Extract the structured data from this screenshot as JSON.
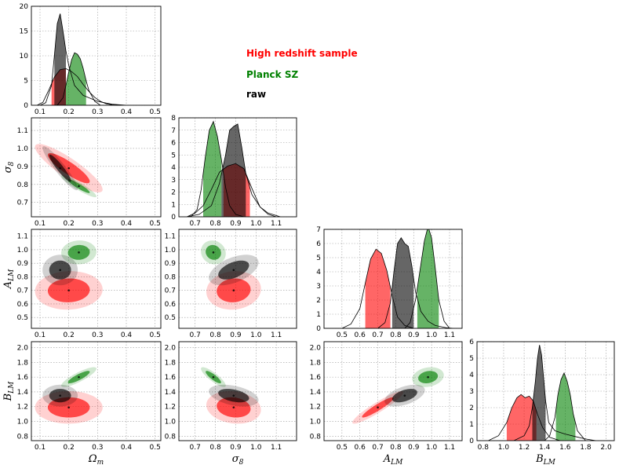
{
  "chart_data": {
    "type": "corner",
    "parameters": [
      {
        "key": "om",
        "symbol": "Ω",
        "sub": "m",
        "range": [
          0.07,
          0.52
        ],
        "ticks": [
          0.1,
          0.2,
          0.3,
          0.4,
          0.5
        ]
      },
      {
        "key": "s8",
        "symbol": "σ",
        "sub": "8",
        "range": [
          0.62,
          1.2
        ],
        "ticks": [
          0.7,
          0.8,
          0.9,
          1.0,
          1.1
        ]
      },
      {
        "key": "alm",
        "symbol": "A",
        "sub": "LM",
        "range": [
          0.4,
          1.17
        ],
        "ticks": [
          0.5,
          0.6,
          0.7,
          0.8,
          0.9,
          1.0,
          1.1
        ]
      },
      {
        "key": "blm",
        "symbol": "B",
        "sub": "LM",
        "range": [
          0.74,
          2.08
        ],
        "ticks": [
          0.8,
          1.0,
          1.2,
          1.4,
          1.6,
          1.8,
          2.0
        ]
      }
    ],
    "series": [
      {
        "name": "High redshift sample",
        "color": "#ff0000",
        "center": {
          "om": 0.2,
          "s8": 0.89,
          "alm": 0.7,
          "blm": 1.19
        },
        "sd": {
          "om": 0.048,
          "s8": 0.055,
          "alm": 0.058,
          "blm": 0.09
        },
        "corr": {
          "om|s8": -0.88,
          "om|alm": 0.05,
          "s8|alm": 0.08,
          "om|blm": 0.0,
          "s8|blm": -0.15,
          "alm|blm": 0.93
        },
        "hist": {
          "om": {
            "x": [
              0.09,
              0.11,
              0.13,
              0.15,
              0.17,
              0.19,
              0.21,
              0.23,
              0.25,
              0.27,
              0.29,
              0.31,
              0.33,
              0.35,
              0.37
            ],
            "y": [
              0,
              0.6,
              3,
              5.7,
              7.2,
              7.4,
              6.8,
              5.8,
              4.2,
              2.8,
              1.6,
              0.8,
              0.3,
              0.1,
              0
            ],
            "shade": [
              0.14,
              0.19
            ]
          },
          "s8": {
            "x": [
              0.66,
              0.7,
              0.74,
              0.78,
              0.82,
              0.86,
              0.9,
              0.94,
              0.98,
              1.02,
              1.06,
              1.1
            ],
            "y": [
              0,
              0.3,
              0.9,
              2.2,
              3.6,
              4.1,
              4.3,
              3.9,
              2.3,
              0.8,
              0.2,
              0
            ],
            "shade": [
              0.84,
              0.97
            ]
          },
          "alm": {
            "x": [
              0.5,
              0.55,
              0.6,
              0.63,
              0.66,
              0.69,
              0.72,
              0.75,
              0.78,
              0.81,
              0.85,
              0.9
            ],
            "y": [
              0,
              0.3,
              1.4,
              3.2,
              4.9,
              5.6,
              5.3,
              4.1,
              2.3,
              0.8,
              0.2,
              0
            ],
            "shade": [
              0.63,
              0.77
            ]
          },
          "blm": {
            "x": [
              0.85,
              0.95,
              1.03,
              1.08,
              1.13,
              1.17,
              1.21,
              1.25,
              1.29,
              1.33,
              1.38,
              1.45,
              1.55
            ],
            "y": [
              0,
              0.3,
              1.1,
              2.0,
              2.6,
              2.8,
              2.6,
              2.7,
              2.4,
              1.6,
              0.8,
              0.2,
              0
            ],
            "shade": [
              1.03,
              1.32
            ]
          }
        }
      },
      {
        "name": "Planck SZ",
        "color": "#008000",
        "center": {
          "om": 0.235,
          "s8": 0.79,
          "alm": 0.98,
          "blm": 1.6
        },
        "sd": {
          "om": 0.025,
          "s8": 0.025,
          "alm": 0.036,
          "blm": 0.055
        },
        "corr": {
          "om|s8": -0.92,
          "om|alm": 0.05,
          "s8|alm": -0.1,
          "om|blm": 0.85,
          "s8|blm": -0.85,
          "alm|blm": 0.2
        },
        "hist": {
          "om": {
            "x": [
              0.16,
              0.18,
              0.19,
              0.2,
              0.21,
              0.22,
              0.23,
              0.24,
              0.25,
              0.26,
              0.27,
              0.29,
              0.31
            ],
            "y": [
              0,
              1.5,
              4,
              6.8,
              9.2,
              10.6,
              10.3,
              9.4,
              7.5,
              5,
              3,
              0.8,
              0
            ],
            "shade": [
              0.19,
              0.26
            ]
          },
          "s8": {
            "x": [
              0.68,
              0.71,
              0.73,
              0.75,
              0.77,
              0.79,
              0.81,
              0.83,
              0.85,
              0.87,
              0.9,
              0.94
            ],
            "y": [
              0,
              0.6,
              2.2,
              4.8,
              7.0,
              7.7,
              6.5,
              4.6,
              2.4,
              0.9,
              0.2,
              0
            ],
            "shade": [
              0.74,
              0.83
            ]
          },
          "alm": {
            "x": [
              0.85,
              0.88,
              0.91,
              0.94,
              0.96,
              0.98,
              1.0,
              1.02,
              1.04,
              1.07,
              1.1
            ],
            "y": [
              0,
              0.4,
              2.0,
              4.5,
              6.2,
              7.2,
              6.4,
              4.3,
              2.0,
              0.5,
              0
            ],
            "shade": [
              0.92,
              1.04
            ]
          },
          "blm": {
            "x": [
              1.4,
              1.45,
              1.5,
              1.53,
              1.56,
              1.59,
              1.62,
              1.65,
              1.68,
              1.72,
              1.8
            ],
            "y": [
              0,
              0.3,
              1.4,
              2.8,
              3.7,
              4.1,
              3.6,
              2.8,
              1.6,
              0.6,
              0
            ],
            "shade": [
              1.51,
              1.7
            ]
          }
        }
      },
      {
        "name": "raw",
        "color": "#000000",
        "center": {
          "om": 0.17,
          "s8": 0.89,
          "alm": 0.85,
          "blm": 1.35
        },
        "sd": {
          "om": 0.025,
          "s8": 0.05,
          "alm": 0.046,
          "blm": 0.06
        },
        "corr": {
          "om|s8": -0.93,
          "om|alm": 0.0,
          "s8|alm": 0.5,
          "om|blm": 0.0,
          "s8|blm": -0.4,
          "alm|blm": 0.5
        },
        "hist": {
          "om": {
            "x": [
              0.1,
              0.12,
              0.14,
              0.15,
              0.16,
              0.17,
              0.18,
              0.19,
              0.2,
              0.22,
              0.25,
              0.3,
              0.35,
              0.4
            ],
            "y": [
              0,
              0.5,
              4,
              10,
              16.5,
              18.5,
              15,
              11,
              8,
              4,
              2,
              0.8,
              0.2,
              0
            ],
            "shade": [
              0.15,
              0.19
            ]
          },
          "s8": {
            "x": [
              0.66,
              0.72,
              0.78,
              0.82,
              0.85,
              0.87,
              0.89,
              0.91,
              0.93,
              0.95,
              0.98,
              1.02,
              1.06,
              1.12
            ],
            "y": [
              0,
              0.2,
              0.9,
              2.7,
              5.0,
              7.0,
              7.3,
              7.5,
              5.6,
              3.5,
              1.8,
              0.8,
              0.3,
              0
            ],
            "shade": [
              0.83,
              0.95
            ]
          },
          "alm": {
            "x": [
              0.7,
              0.74,
              0.77,
              0.79,
              0.81,
              0.83,
              0.85,
              0.87,
              0.89,
              0.91,
              0.94,
              0.98,
              1.02,
              1.08,
              1.12
            ],
            "y": [
              0,
              0.4,
              1.8,
              4.0,
              6.0,
              6.4,
              6.0,
              5.8,
              4.4,
              2.6,
              1.2,
              0.5,
              0.2,
              0.05,
              0
            ],
            "shade": [
              0.78,
              0.9
            ]
          },
          "blm": {
            "x": [
              1.1,
              1.2,
              1.25,
              1.28,
              1.31,
              1.33,
              1.35,
              1.37,
              1.39,
              1.41,
              1.44,
              1.5,
              1.6,
              1.7,
              1.8,
              1.9
            ],
            "y": [
              0,
              0.3,
              0.9,
              2.0,
              3.6,
              5.0,
              5.8,
              5.2,
              3.8,
              2.4,
              1.1,
              0.6,
              0.4,
              0.25,
              0.1,
              0
            ],
            "shade": [
              1.28,
              1.41
            ]
          }
        }
      }
    ],
    "diag_ylim": {
      "om": [
        0,
        20
      ],
      "s8": [
        0,
        8
      ],
      "alm": [
        0,
        7
      ],
      "blm": [
        0,
        6
      ]
    },
    "diag_yticks": {
      "om": [
        0,
        5,
        10,
        15,
        20
      ],
      "s8": [
        0,
        1,
        2,
        3,
        4,
        5,
        6,
        7,
        8
      ],
      "alm": [
        0,
        1,
        2,
        3,
        4,
        5,
        6,
        7
      ],
      "blm": [
        0,
        1,
        2,
        3,
        4,
        5,
        6
      ]
    },
    "offdiag_ylim": {
      "s8": [
        0.62,
        1.17
      ],
      "alm": [
        0.42,
        1.15
      ],
      "blm": [
        0.74,
        2.08
      ]
    },
    "offdiag_yticks": {
      "s8": [
        0.7,
        0.8,
        0.9,
        1.0,
        1.1
      ],
      "alm": [
        0.5,
        0.6,
        0.7,
        0.8,
        0.9,
        1.0,
        1.1
      ],
      "blm": [
        0.8,
        1.0,
        1.2,
        1.4,
        1.6,
        1.8,
        2.0
      ]
    },
    "legend_position": "top-right",
    "grid": true
  }
}
